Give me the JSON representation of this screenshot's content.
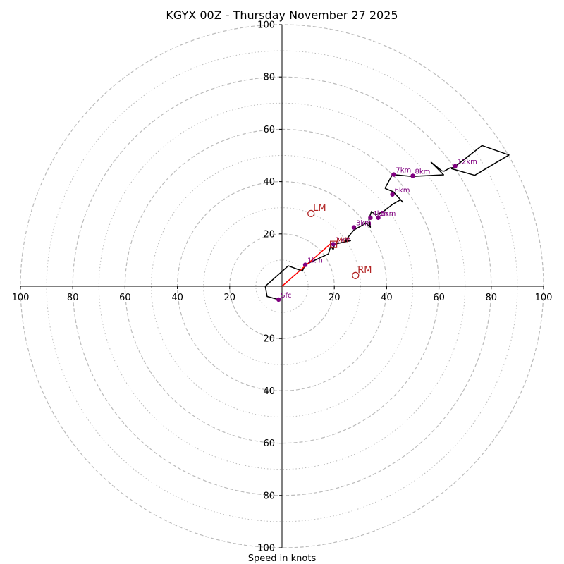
{
  "chart_data": {
    "type": "hodograph",
    "title": "KGYX 00Z - Thursday November 27 2025",
    "xlabel": "Speed in knots",
    "units": "knots",
    "range": [
      -100,
      100
    ],
    "ring_major": [
      20,
      40,
      60,
      80,
      100
    ],
    "ring_minor": [
      10,
      30,
      50,
      70,
      90
    ],
    "x_ticks": [
      {
        "value": -100,
        "label": "100"
      },
      {
        "value": -80,
        "label": "80"
      },
      {
        "value": -60,
        "label": "60"
      },
      {
        "value": -40,
        "label": "40"
      },
      {
        "value": -20,
        "label": "20"
      },
      {
        "value": 20,
        "label": "20"
      },
      {
        "value": 40,
        "label": "40"
      },
      {
        "value": 60,
        "label": "60"
      },
      {
        "value": 80,
        "label": "80"
      },
      {
        "value": 100,
        "label": "100"
      }
    ],
    "y_ticks_upper": [
      {
        "value": 20,
        "label": "20"
      },
      {
        "value": 40,
        "label": "40"
      },
      {
        "value": 60,
        "label": "60"
      },
      {
        "value": 80,
        "label": "80"
      },
      {
        "value": 100,
        "label": "100"
      }
    ],
    "y_ticks_lower": [
      {
        "value": -20,
        "label": "20"
      },
      {
        "value": -40,
        "label": "40"
      },
      {
        "value": -60,
        "label": "60"
      },
      {
        "value": -80,
        "label": "80"
      },
      {
        "value": -100,
        "label": "100"
      }
    ],
    "trace": [
      [
        -1.3,
        -5.1
      ],
      [
        -5.7,
        -3.9
      ],
      [
        -6.4,
        0.0
      ],
      [
        2.4,
        7.8
      ],
      [
        7.8,
        5.8
      ],
      [
        8.9,
        8.2
      ],
      [
        17.8,
        12.4
      ],
      [
        18.6,
        15.4
      ],
      [
        19.6,
        14.0
      ],
      [
        20.1,
        16.1
      ],
      [
        26.2,
        17.4
      ],
      [
        24.1,
        17.3
      ],
      [
        27.5,
        21.5
      ],
      [
        32.1,
        24.1
      ],
      [
        33.8,
        22.6
      ],
      [
        33.2,
        25.6
      ],
      [
        34.2,
        28.6
      ],
      [
        35.8,
        27.3
      ],
      [
        38.5,
        28.4
      ],
      [
        42.4,
        31.4
      ],
      [
        45.4,
        33.1
      ],
      [
        46.2,
        32.1
      ],
      [
        42.6,
        36.1
      ],
      [
        39.6,
        37.3
      ],
      [
        39.4,
        37.5
      ],
      [
        42.2,
        42.7
      ],
      [
        49.7,
        42.0
      ],
      [
        60.4,
        42.5
      ],
      [
        61.8,
        42.6
      ],
      [
        57.0,
        47.4
      ],
      [
        61.1,
        44.1
      ],
      [
        62.0,
        44.0
      ],
      [
        64.2,
        45.2
      ],
      [
        65.7,
        45.4
      ],
      [
        76.5,
        53.8
      ],
      [
        86.8,
        50.2
      ],
      [
        73.7,
        42.4
      ],
      [
        64.7,
        45.0
      ]
    ],
    "height_points": [
      {
        "label": "Sfc",
        "u": -1.3,
        "v": -5.1
      },
      {
        "label": "1km",
        "u": 8.9,
        "v": 8.2
      },
      {
        "label": "2km",
        "u": 19.6,
        "v": 16.1
      },
      {
        "label": "3km",
        "u": 27.5,
        "v": 22.5
      },
      {
        "label": "4km",
        "u": 33.8,
        "v": 26.2
      },
      {
        "label": "5km",
        "u": 36.8,
        "v": 26.2
      },
      {
        "label": "6km",
        "u": 42.2,
        "v": 35.1
      },
      {
        "label": "7km",
        "u": 42.7,
        "v": 42.7
      },
      {
        "label": "8km",
        "u": 50.0,
        "v": 42.2
      },
      {
        "label": "12km",
        "u": 66.2,
        "v": 45.9
      }
    ],
    "shear_vector": [
      [
        0,
        0
      ],
      [
        18.4,
        16.1
      ]
    ],
    "motions": [
      {
        "label": "LM",
        "u": 11.1,
        "v": 27.8,
        "marker": "circle"
      },
      {
        "label": "RM",
        "u": 28.1,
        "v": 4.1,
        "marker": "circle"
      },
      {
        "label": "MW",
        "u": 19.7,
        "v": 16.0,
        "marker": "square"
      }
    ],
    "colors": {
      "trace": "#000000",
      "height_points": "#800080",
      "shear": "#ff0000",
      "motion": "#b22222",
      "ring": "#bbbbbb",
      "axes": "#000000"
    }
  }
}
